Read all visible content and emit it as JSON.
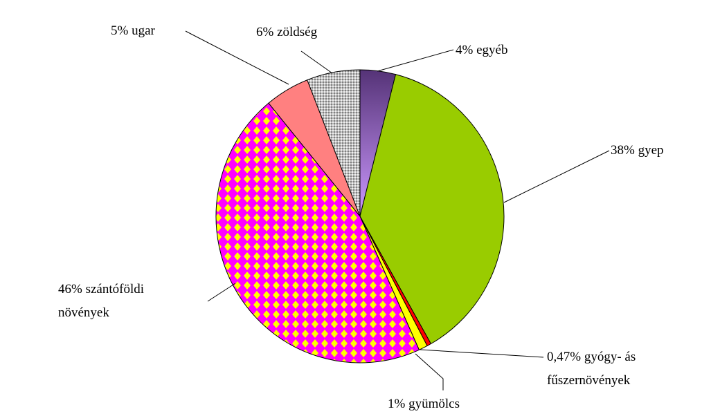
{
  "chart_data": {
    "type": "pie",
    "categories": [
      "4% egyéb",
      "38% gyep",
      "0,47% gyógy- ás\nfűszernövények",
      "1% gyümölcs",
      "46% szántóföldi\nnövények",
      "5% ugar",
      "6% zöldség"
    ],
    "values": [
      4,
      38,
      0.47,
      1,
      46,
      5,
      6
    ],
    "colors": [
      "#9966cc",
      "#99cc00",
      "#ff0000",
      "#ffff00",
      "#ff00ff",
      "#ff8080",
      "#c0c0c0"
    ]
  }
}
